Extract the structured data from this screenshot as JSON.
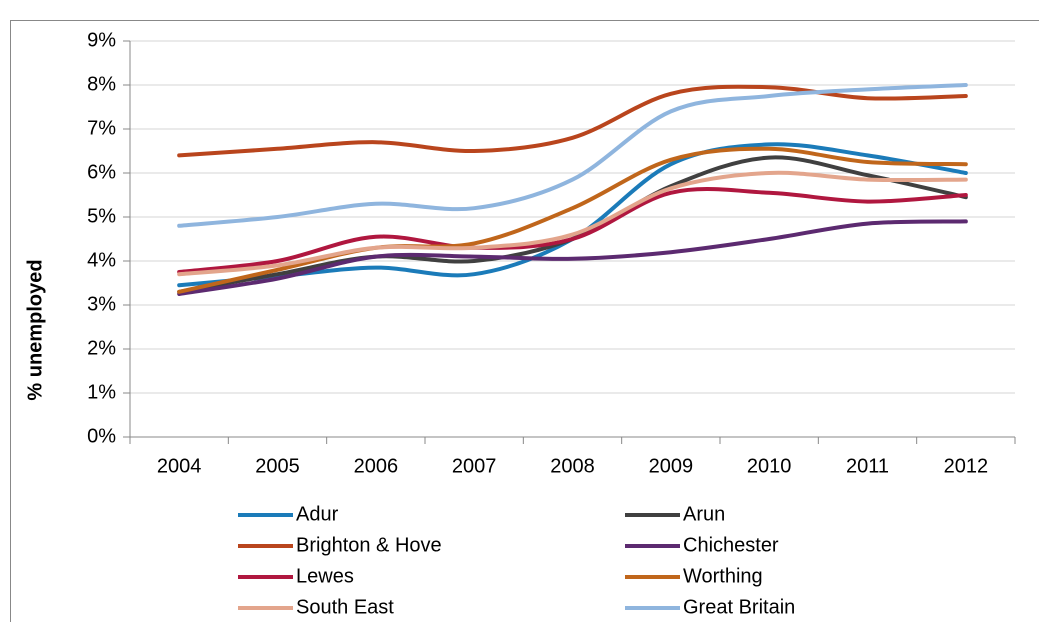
{
  "chart_data": {
    "type": "line",
    "y_label": "% unemployed",
    "categories": [
      "2004",
      "2005",
      "2006",
      "2007",
      "2008",
      "2009",
      "2010",
      "2011",
      "2012"
    ],
    "ylim": [
      0,
      9
    ],
    "yticks": [
      {
        "value": 0,
        "label": "0%"
      },
      {
        "value": 1,
        "label": "1%"
      },
      {
        "value": 2,
        "label": "2%"
      },
      {
        "value": 3,
        "label": "3%"
      },
      {
        "value": 4,
        "label": "4%"
      },
      {
        "value": 5,
        "label": "5%"
      },
      {
        "value": 6,
        "label": "6%"
      },
      {
        "value": 7,
        "label": "7%"
      },
      {
        "value": 8,
        "label": "8%"
      },
      {
        "value": 9,
        "label": "9%"
      }
    ],
    "grid": true,
    "smooth": true,
    "series": [
      {
        "name": "Adur",
        "color": "#1b7bb9",
        "values": [
          3.45,
          3.65,
          3.85,
          3.7,
          4.5,
          6.2,
          6.65,
          6.4,
          6.0
        ]
      },
      {
        "name": "Arun",
        "color": "#404040",
        "values": [
          3.3,
          3.7,
          4.1,
          4.0,
          4.5,
          5.7,
          6.35,
          5.95,
          5.45
        ]
      },
      {
        "name": "Brighton & Hove",
        "color": "#b9451d",
        "values": [
          6.4,
          6.55,
          6.7,
          6.5,
          6.8,
          7.8,
          7.95,
          7.7,
          7.75
        ]
      },
      {
        "name": "Chichester",
        "color": "#5c2a70",
        "values": [
          3.25,
          3.6,
          4.1,
          4.1,
          4.05,
          4.2,
          4.5,
          4.85,
          4.9
        ]
      },
      {
        "name": "Lewes",
        "color": "#b0173f",
        "values": [
          3.75,
          4.0,
          4.55,
          4.3,
          4.5,
          5.55,
          5.55,
          5.35,
          5.5
        ]
      },
      {
        "name": "Worthing",
        "color": "#c0661b",
        "values": [
          3.3,
          3.8,
          4.3,
          4.4,
          5.2,
          6.3,
          6.55,
          6.25,
          6.2
        ]
      },
      {
        "name": "South East",
        "color": "#e3a58c",
        "values": [
          3.7,
          3.9,
          4.3,
          4.3,
          4.6,
          5.65,
          6.0,
          5.85,
          5.85
        ]
      },
      {
        "name": "Great Britain",
        "color": "#8fb5de",
        "values": [
          4.8,
          5.0,
          5.3,
          5.2,
          5.85,
          7.4,
          7.75,
          7.9,
          8.0
        ]
      }
    ]
  }
}
